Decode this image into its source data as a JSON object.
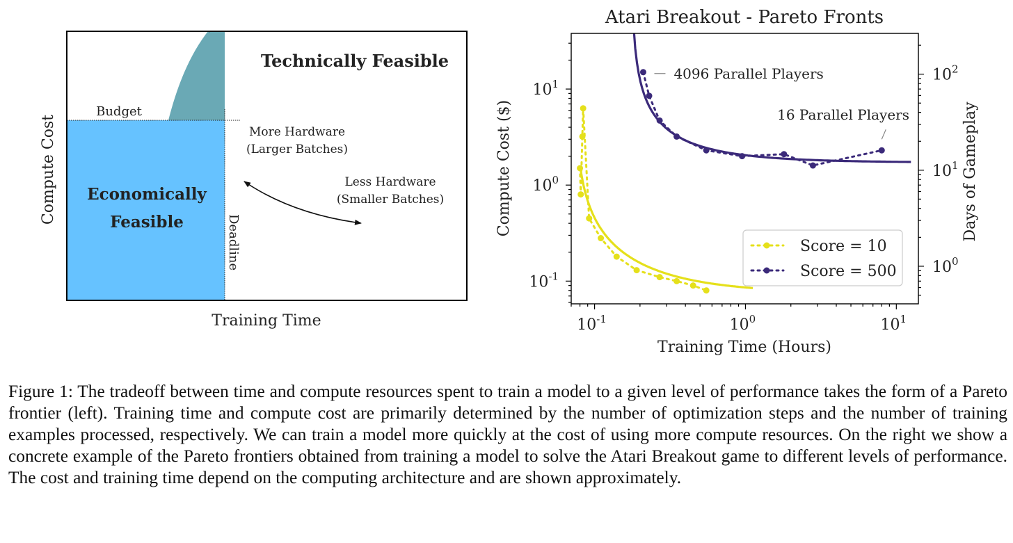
{
  "caption": "Figure 1: The tradeoff between time and compute resources spent to train a model to a given level of performance takes the form of a Pareto frontier (left). Training time and compute cost are primarily determined by the number of optimization steps and the number of training examples processed, respectively. We can train a model more quickly at the cost of using more compute resources. On the right we show a concrete example of the Pareto frontiers obtained from training a model to solve the Atari Breakout game to different levels of performance. The cost and training time depend on the computing architecture and are shown approximately.",
  "left_diagram": {
    "xlabel": "Training Time",
    "ylabel": "Compute Cost",
    "technically_feasible": "Technically Feasible",
    "economically_feasible_line1": "Economically",
    "economically_feasible_line2": "Feasible",
    "budget": "Budget",
    "deadline": "Deadline",
    "more_hw_line1": "More Hardware",
    "more_hw_line2": "(Larger Batches)",
    "less_hw_line1": "Less Hardware",
    "less_hw_line2": "(Smaller Batches)",
    "colors": {
      "technical": "#fbb55e",
      "economic": "#66c2ff",
      "overlap": "#6aa9b5"
    }
  },
  "chart_data": {
    "type": "scatter",
    "title": "Atari Breakout - Pareto Fronts",
    "xlabel": "Training Time (Hours)",
    "ylabel": "Compute Cost ($)",
    "ylabel_right": "Days of Gameplay",
    "xscale": "log",
    "yscale": "log",
    "xlim": [
      0.07,
      14
    ],
    "ylim": [
      0.058,
      38
    ],
    "xticks": [
      {
        "value": 0.1,
        "label": "10^-1"
      },
      {
        "value": 1,
        "label": "10^0"
      },
      {
        "value": 10,
        "label": "10^1"
      }
    ],
    "yticks": [
      {
        "value": 0.1,
        "label": "10^-1"
      },
      {
        "value": 1,
        "label": "10^0"
      },
      {
        "value": 10,
        "label": "10^1"
      }
    ],
    "yticks_right": [
      {
        "value": 1,
        "label": "10^0"
      },
      {
        "value": 10,
        "label": "10^1"
      },
      {
        "value": 100,
        "label": "10^2"
      }
    ],
    "right_axis_factor": 7.0,
    "legend_position": "lower-right",
    "series": [
      {
        "name": "Score = 10",
        "color": "#e5e01b",
        "x": [
          0.08,
          0.081,
          0.083,
          0.084,
          0.092,
          0.11,
          0.14,
          0.19,
          0.27,
          0.35,
          0.45,
          0.55
        ],
        "y": [
          1.5,
          0.8,
          3.2,
          6.3,
          0.45,
          0.28,
          0.18,
          0.13,
          0.11,
          0.1,
          0.09,
          0.08
        ],
        "fit": {
          "a": 0.075,
          "b": 0.0101,
          "c": 0.0735,
          "x_range": [
            0.0805,
            1.12
          ]
        }
      },
      {
        "name": "Score = 500",
        "color": "#3b2a7a",
        "x": [
          0.21,
          0.23,
          0.27,
          0.35,
          0.55,
          0.95,
          1.8,
          2.8,
          8.0
        ],
        "y": [
          15.0,
          8.5,
          4.7,
          3.2,
          2.3,
          2.0,
          2.1,
          1.6,
          2.3
        ],
        "fit": {
          "a": 1.72,
          "b": 0.27,
          "c": 0.175,
          "x_range": [
            0.181,
            12.5
          ]
        }
      }
    ],
    "annotations": [
      {
        "text": "4096 Parallel Players",
        "x": 0.21,
        "y": 15.0
      },
      {
        "text": "16 Parallel Players",
        "x": 8.0,
        "y": 2.3
      }
    ]
  }
}
